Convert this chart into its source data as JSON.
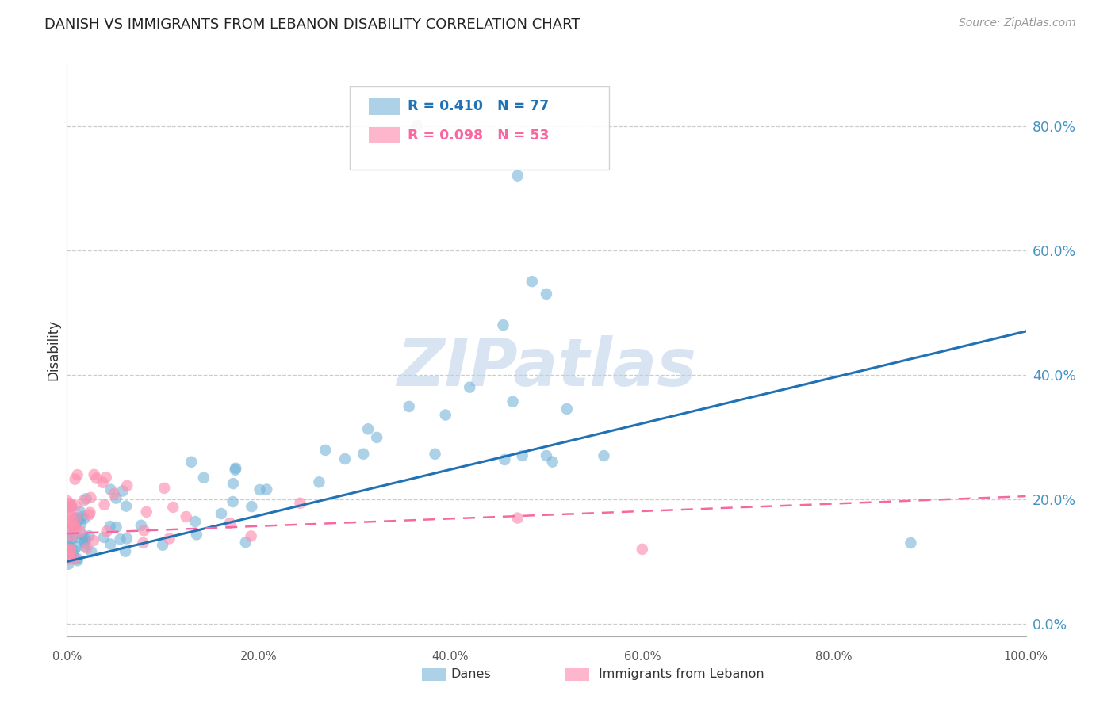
{
  "title": "DANISH VS IMMIGRANTS FROM LEBANON DISABILITY CORRELATION CHART",
  "source": "Source: ZipAtlas.com",
  "ylabel": "Disability",
  "watermark": "ZIPatlas",
  "legend_danes": "Danes",
  "legend_immigrants": "Immigrants from Lebanon",
  "danes_R": "R = 0.410",
  "danes_N": "N = 77",
  "immigrants_R": "R = 0.098",
  "immigrants_N": "N = 53",
  "danes_color": "#6baed6",
  "immigrants_color": "#fc8faf",
  "danes_line_color": "#2171b5",
  "immigrants_line_color": "#f768a1",
  "background_color": "#ffffff",
  "grid_color": "#cccccc",
  "title_color": "#222222",
  "right_tick_color": "#4393c3",
  "xlim": [
    0.0,
    1.0
  ],
  "ylim": [
    -0.02,
    0.9
  ],
  "yticks": [
    0.0,
    0.2,
    0.4,
    0.6,
    0.8
  ],
  "xticks": [
    0.0,
    0.2,
    0.4,
    0.6,
    0.8,
    1.0
  ],
  "xtick_labels": [
    "0.0%",
    "20.0%",
    "40.0%",
    "60.0%",
    "80.0%",
    "100.0%"
  ],
  "ytick_labels": [
    "0.0%",
    "20.0%",
    "40.0%",
    "60.0%",
    "80.0%"
  ],
  "danes_trend_x": [
    0.0,
    1.0
  ],
  "danes_trend_y": [
    0.1,
    0.47
  ],
  "immigrants_trend_x": [
    0.0,
    1.0
  ],
  "immigrants_trend_y": [
    0.145,
    0.205
  ]
}
